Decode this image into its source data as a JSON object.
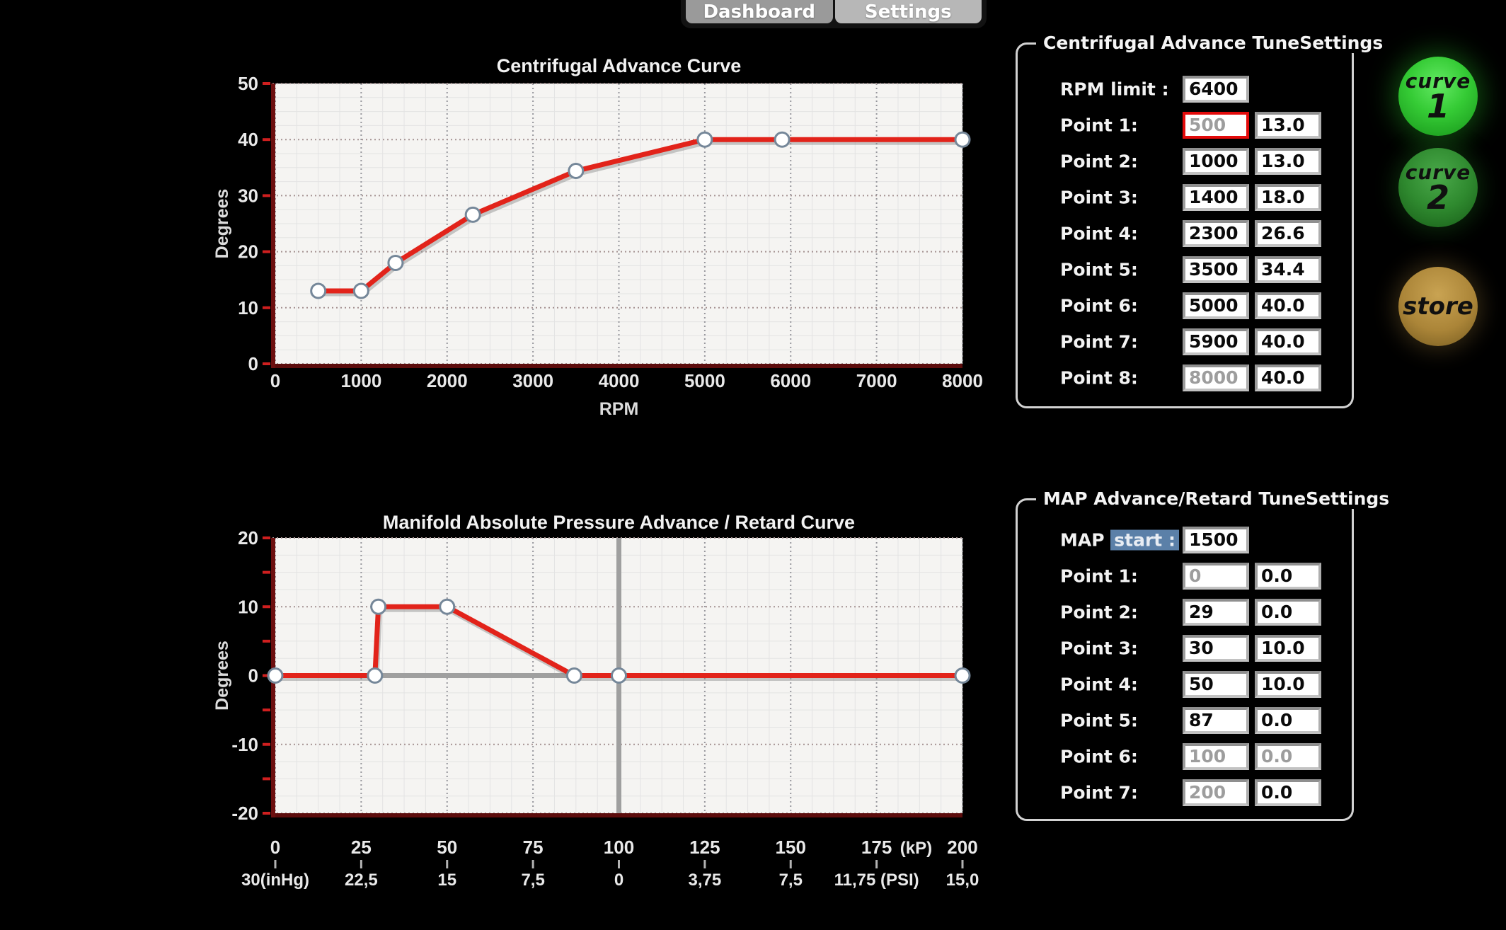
{
  "tab_bar": {
    "tabs": [
      {
        "id": "dashboard",
        "label": "Dashboard",
        "active": false
      },
      {
        "id": "settings",
        "label": "Settings",
        "active": true
      }
    ]
  },
  "side_buttons": [
    {
      "id": "curve1",
      "lines": [
        "curve",
        "1"
      ],
      "style": "green-bright"
    },
    {
      "id": "curve2",
      "lines": [
        "curve",
        "2"
      ],
      "style": "green-dark"
    },
    {
      "id": "store",
      "lines": [
        "store"
      ],
      "style": "gold"
    }
  ],
  "centrifugal_panel": {
    "legend": "Centrifugal Advance TuneSettings",
    "header_row": {
      "label": "RPM limit :",
      "value": "6400"
    },
    "points": [
      {
        "label": "Point 1:",
        "x": "500",
        "y": "13.0",
        "x_disabled": true,
        "x_selected": true
      },
      {
        "label": "Point 2:",
        "x": "1000",
        "y": "13.0"
      },
      {
        "label": "Point 3:",
        "x": "1400",
        "y": "18.0"
      },
      {
        "label": "Point 4:",
        "x": "2300",
        "y": "26.6"
      },
      {
        "label": "Point 5:",
        "x": "3500",
        "y": "34.4"
      },
      {
        "label": "Point 6:",
        "x": "5000",
        "y": "40.0"
      },
      {
        "label": "Point 7:",
        "x": "5900",
        "y": "40.0"
      },
      {
        "label": "Point 8:",
        "x": "8000",
        "y": "40.0",
        "x_disabled": true
      }
    ]
  },
  "map_panel": {
    "legend": "MAP Advance/Retard TuneSettings",
    "header_row": {
      "label_prefix": "MAP",
      "label_highlight": "start :",
      "value": "1500"
    },
    "points": [
      {
        "label": "Point 1:",
        "x": "0",
        "y": "0.0",
        "x_disabled": true
      },
      {
        "label": "Point 2:",
        "x": "29",
        "y": "0.0"
      },
      {
        "label": "Point 3:",
        "x": "30",
        "y": "10.0"
      },
      {
        "label": "Point 4:",
        "x": "50",
        "y": "10.0"
      },
      {
        "label": "Point 5:",
        "x": "87",
        "y": "0.0"
      },
      {
        "label": "Point 6:",
        "x": "100",
        "y": "0.0",
        "x_disabled": true,
        "y_disabled": true
      },
      {
        "label": "Point 7:",
        "x": "200",
        "y": "0.0",
        "x_disabled": true
      }
    ]
  },
  "chart_data": [
    {
      "id": "centrifugal",
      "type": "line",
      "title": "Centrifugal Advance Curve",
      "xlabel": "RPM",
      "ylabel": "Degrees",
      "xlim": [
        0,
        8000
      ],
      "ylim": [
        0,
        50
      ],
      "x_ticks": [
        0,
        1000,
        2000,
        3000,
        4000,
        5000,
        6000,
        7000,
        8000
      ],
      "y_ticks": [
        0,
        10,
        20,
        30,
        40,
        50
      ],
      "x_minor_step": 250,
      "y_minor_step": 2.5,
      "y_red_tick_step": 10,
      "grid": true,
      "legend_position": "none",
      "series": [
        {
          "name": "centrifugal_advance",
          "color": "#e2231a",
          "points": [
            [
              500,
              13
            ],
            [
              1000,
              13
            ],
            [
              1400,
              18
            ],
            [
              2300,
              26.6
            ],
            [
              3500,
              34.4
            ],
            [
              5000,
              40.0
            ],
            [
              5900,
              40.0
            ],
            [
              8000,
              40.0
            ]
          ]
        }
      ]
    },
    {
      "id": "map",
      "type": "line",
      "title": "Manifold Absolute Pressure Advance / Retard Curve",
      "ylabel": "Degrees",
      "xlim": [
        0,
        200
      ],
      "ylim": [
        -20,
        20
      ],
      "x_ticks": [
        0,
        25,
        50,
        75,
        100,
        125,
        150,
        175,
        200
      ],
      "x_tick_labels": [
        "0",
        "25",
        "50",
        "75",
        "100",
        "125",
        "150",
        "175",
        "200"
      ],
      "x_unit_primary": "(kP)",
      "x_unit_primary_pos": 186.5,
      "x_secondary_labels": [
        "30(inHg)",
        "22,5",
        "15",
        "7,5",
        "0",
        "3,75",
        "7,5",
        "11,75 (PSI)",
        "15,0"
      ],
      "y_ticks": [
        -20,
        -10,
        0,
        10,
        20
      ],
      "x_minor_step": 6.25,
      "y_minor_step": 2.5,
      "y_red_tick_step": 5,
      "grid": true,
      "legend_position": "none",
      "crosshair": {
        "horizontal_y": 0,
        "vertical_x": 100
      },
      "series": [
        {
          "name": "map_advance_retard",
          "color": "#e2231a",
          "points": [
            [
              0,
              0
            ],
            [
              29,
              0
            ],
            [
              30,
              10
            ],
            [
              50,
              10
            ],
            [
              87,
              0
            ],
            [
              100,
              0
            ],
            [
              200,
              0
            ]
          ]
        }
      ]
    }
  ],
  "colors": {
    "curve_line": "#e2231a",
    "axis_spine": "#6d0f0f",
    "button_green_bright": "#35cb35",
    "button_green_dark": "#2f8a2f",
    "button_gold": "#ab8538",
    "selection_blue": "#5b80a8",
    "selected_input_frame": "#e30b0b"
  }
}
